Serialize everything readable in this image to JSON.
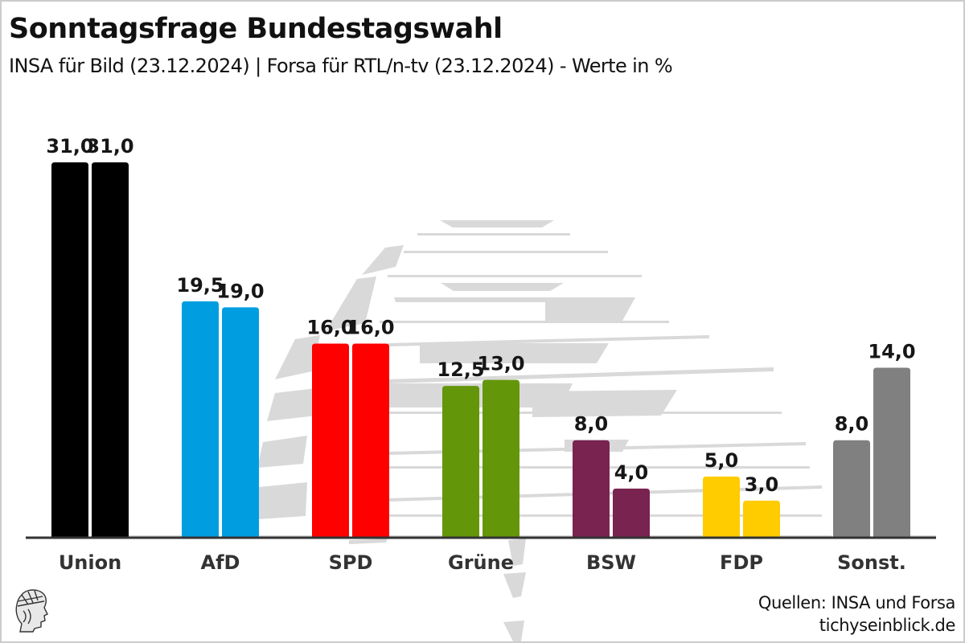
{
  "header": {
    "title": "Sonntagsfrage Bundestagswahl",
    "subtitle": "INSA für Bild (23.12.2024) | Forsa für RTL/n-tv (23.12.2024) - Werte in %"
  },
  "footer": {
    "source_line": "Quellen: INSA und Forsa",
    "site": "tichyseinblick.de",
    "logo_icon": "hermes-head-logo-icon"
  },
  "chart_data": {
    "type": "bar",
    "title": "Sonntagsfrage Bundestagswahl",
    "subtitle": "INSA für Bild (23.12.2024) | Forsa für RTL/n-tv (23.12.2024) - Werte in %",
    "xlabel": "",
    "ylabel": "",
    "ylim": [
      0,
      31
    ],
    "grid": false,
    "legend": "none",
    "categories": [
      "Union",
      "AfD",
      "SPD",
      "Grüne",
      "BSW",
      "FDP",
      "Sonst."
    ],
    "colors": [
      "#000000",
      "#009ee0",
      "#ff0000",
      "#64960a",
      "#792350",
      "#ffcc00",
      "#808080"
    ],
    "series": [
      {
        "name": "INSA",
        "values": [
          31.0,
          19.5,
          16.0,
          12.5,
          8.0,
          5.0,
          8.0
        ]
      },
      {
        "name": "Forsa",
        "values": [
          31.0,
          19.0,
          16.0,
          13.0,
          4.0,
          3.0,
          14.0
        ]
      }
    ],
    "value_labels": [
      [
        "31,0",
        "19,5",
        "16,0",
        "12,5",
        "8,0",
        "5,0",
        "8,0"
      ],
      [
        "31,0",
        "19,0",
        "16,0",
        "13,0",
        "4,0",
        "3,0",
        "14,0"
      ]
    ]
  }
}
